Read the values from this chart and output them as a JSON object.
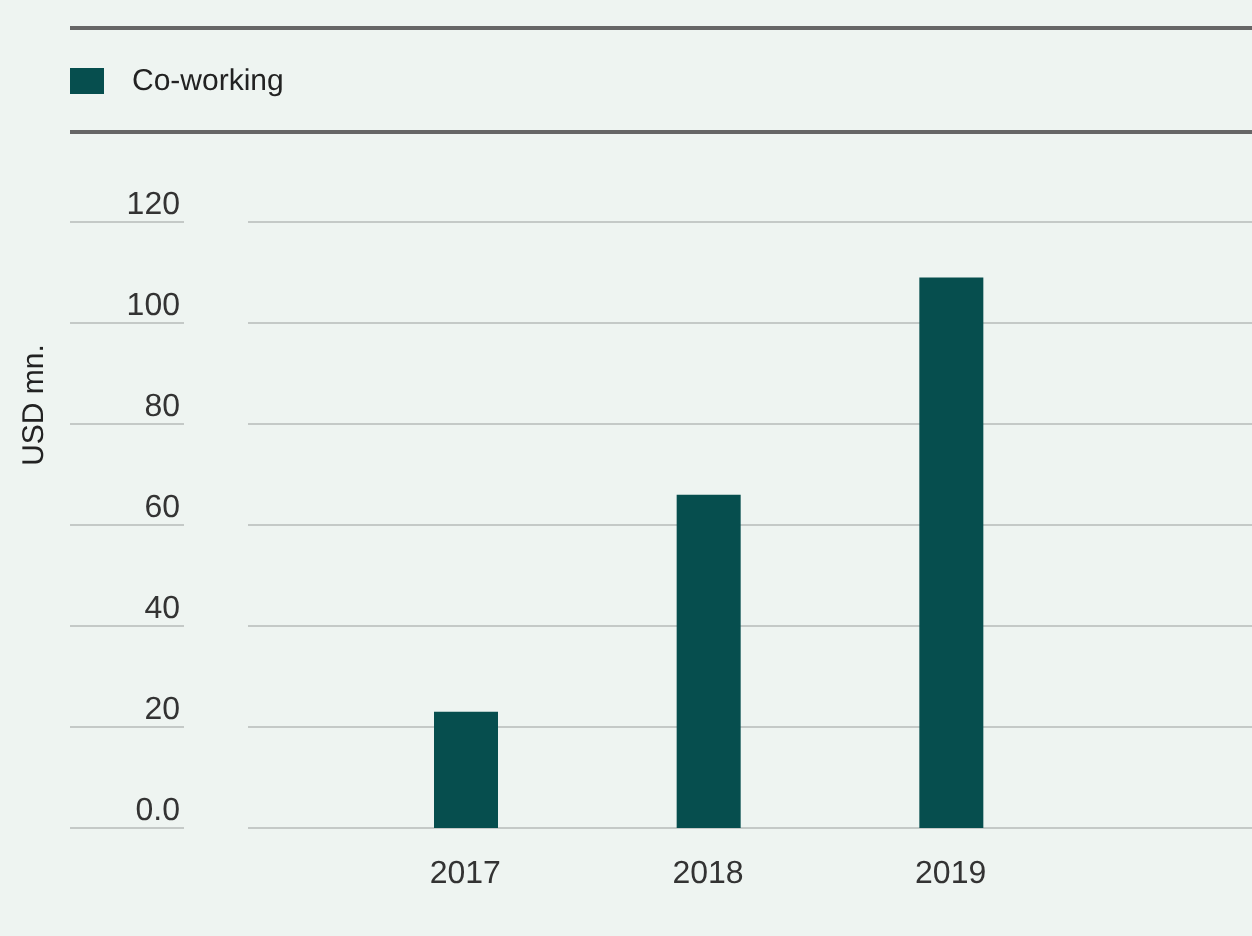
{
  "chart_data": {
    "type": "bar",
    "ylabel": "USD mn.",
    "categories": [
      "2017",
      "2018",
      "2019"
    ],
    "series": [
      {
        "name": "Co-working",
        "color": "#064e4e",
        "values": [
          23,
          66,
          109
        ]
      }
    ],
    "ylim": [
      0,
      120
    ],
    "yticks": [
      {
        "value": 0,
        "label": "0.0"
      },
      20,
      40,
      60,
      80,
      100,
      120
    ],
    "grid": "y",
    "legend": "top left"
  }
}
